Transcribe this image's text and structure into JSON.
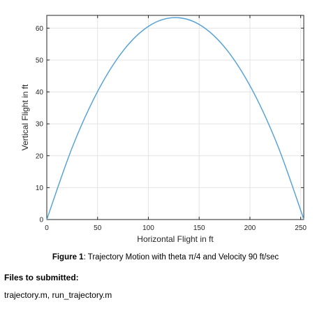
{
  "chart_data": {
    "type": "line",
    "xlabel": "Horizontal Flight in ft",
    "ylabel": "Vertical Flight in ft",
    "xlim": [
      0,
      253
    ],
    "ylim": [
      0,
      64
    ],
    "x_ticks": [
      0,
      50,
      100,
      150,
      200,
      250
    ],
    "y_ticks": [
      0,
      10,
      20,
      30,
      40,
      50,
      60
    ],
    "grid": true,
    "series": [
      {
        "color": "#4f9fd8",
        "x": [
          0,
          25.3,
          50.6,
          75.9,
          101.2,
          126.6,
          151.9,
          177.2,
          202.5,
          227.8,
          253.1
        ],
        "y": [
          0,
          22.8,
          40.5,
          53.2,
          60.8,
          63.3,
          60.8,
          53.2,
          40.5,
          22.8,
          0
        ]
      }
    ]
  },
  "caption": {
    "label": "Figure 1",
    "text": ": Trajectory Motion with theta π/4 and Velocity 90 ft/sec"
  },
  "files": {
    "title": "Files to submitted:",
    "list": "trajectory.m, run_trajectory.m"
  }
}
